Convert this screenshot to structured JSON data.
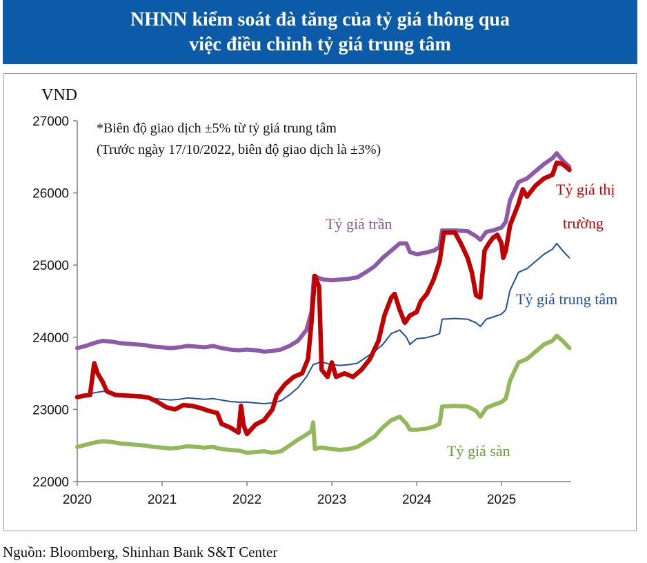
{
  "title": {
    "line1": "NHNN kiểm soát đà tăng của tỷ giá thông qua",
    "line2": "việc điều chỉnh tỷ giá trung tâm"
  },
  "source": "Nguồn: Bloomberg, Shinhan Bank S&T Center",
  "colors": {
    "banner": "#0b5ba9",
    "ceiling": "#8c5aa8",
    "market": "#c00000",
    "central": "#1f4e9c",
    "floor": "#93b85c"
  },
  "chart_data": {
    "type": "line",
    "ylabel": "VND",
    "ylim": [
      22000,
      27000
    ],
    "yticks": [
      22000,
      23000,
      24000,
      25000,
      26000,
      27000
    ],
    "xlim": [
      2020,
      2025.82
    ],
    "xticks": [
      2020,
      2021,
      2022,
      2023,
      2024,
      2025
    ],
    "grid": false,
    "notes": [
      "*Biên độ giao dịch ±5% từ tỷ giá trung tâm",
      "(Trước ngày 17/10/2022, biên độ giao dịch là ±3%)"
    ],
    "series_labels": {
      "ceiling": "Tỷ giá trần",
      "market_line1": "Tỷ giá thị",
      "market_line2": "trường",
      "central": "Tỷ giá trung tâm",
      "floor": "Tỷ giá sàn"
    },
    "series": [
      {
        "key": "ceiling",
        "name": "Tỷ giá trần",
        "color": "#8c5aa8",
        "points": [
          [
            2020.0,
            23850
          ],
          [
            2020.1,
            23880
          ],
          [
            2020.2,
            23920
          ],
          [
            2020.3,
            23950
          ],
          [
            2020.4,
            23940
          ],
          [
            2020.5,
            23920
          ],
          [
            2020.6,
            23910
          ],
          [
            2020.7,
            23900
          ],
          [
            2020.8,
            23890
          ],
          [
            2020.9,
            23870
          ],
          [
            2021.0,
            23860
          ],
          [
            2021.1,
            23850
          ],
          [
            2021.2,
            23860
          ],
          [
            2021.3,
            23880
          ],
          [
            2021.4,
            23870
          ],
          [
            2021.5,
            23860
          ],
          [
            2021.6,
            23880
          ],
          [
            2021.7,
            23850
          ],
          [
            2021.8,
            23830
          ],
          [
            2021.9,
            23820
          ],
          [
            2022.0,
            23830
          ],
          [
            2022.1,
            23820
          ],
          [
            2022.2,
            23800
          ],
          [
            2022.3,
            23810
          ],
          [
            2022.4,
            23830
          ],
          [
            2022.5,
            23880
          ],
          [
            2022.6,
            23950
          ],
          [
            2022.7,
            24100
          ],
          [
            2022.76,
            24350
          ],
          [
            2022.79,
            24850
          ],
          [
            2022.85,
            24820
          ],
          [
            2022.9,
            24800
          ],
          [
            2023.0,
            24790
          ],
          [
            2023.1,
            24800
          ],
          [
            2023.2,
            24810
          ],
          [
            2023.3,
            24830
          ],
          [
            2023.4,
            24900
          ],
          [
            2023.5,
            24980
          ],
          [
            2023.6,
            25100
          ],
          [
            2023.7,
            25200
          ],
          [
            2023.8,
            25300
          ],
          [
            2023.88,
            25300
          ],
          [
            2023.92,
            25180
          ],
          [
            2024.0,
            25150
          ],
          [
            2024.1,
            25170
          ],
          [
            2024.2,
            25200
          ],
          [
            2024.27,
            25250
          ],
          [
            2024.3,
            25480
          ],
          [
            2024.45,
            25480
          ],
          [
            2024.6,
            25470
          ],
          [
            2024.7,
            25400
          ],
          [
            2024.75,
            25350
          ],
          [
            2024.82,
            25460
          ],
          [
            2024.9,
            25480
          ],
          [
            2025.0,
            25520
          ],
          [
            2025.05,
            25600
          ],
          [
            2025.1,
            25900
          ],
          [
            2025.2,
            26150
          ],
          [
            2025.3,
            26200
          ],
          [
            2025.4,
            26300
          ],
          [
            2025.5,
            26400
          ],
          [
            2025.6,
            26480
          ],
          [
            2025.65,
            26550
          ],
          [
            2025.72,
            26450
          ],
          [
            2025.8,
            26360
          ]
        ]
      },
      {
        "key": "market",
        "name": "Tỷ giá thị trường",
        "color": "#c00000",
        "points": [
          [
            2020.0,
            23170
          ],
          [
            2020.08,
            23190
          ],
          [
            2020.15,
            23200
          ],
          [
            2020.2,
            23640
          ],
          [
            2020.24,
            23500
          ],
          [
            2020.3,
            23380
          ],
          [
            2020.35,
            23250
          ],
          [
            2020.45,
            23200
          ],
          [
            2020.6,
            23190
          ],
          [
            2020.75,
            23180
          ],
          [
            2020.85,
            23160
          ],
          [
            2020.95,
            23100
          ],
          [
            2021.05,
            23030
          ],
          [
            2021.15,
            23000
          ],
          [
            2021.25,
            23060
          ],
          [
            2021.35,
            23050
          ],
          [
            2021.45,
            23020
          ],
          [
            2021.55,
            22980
          ],
          [
            2021.65,
            22950
          ],
          [
            2021.7,
            22800
          ],
          [
            2021.8,
            22750
          ],
          [
            2021.9,
            22680
          ],
          [
            2021.93,
            23050
          ],
          [
            2021.96,
            22780
          ],
          [
            2022.0,
            22660
          ],
          [
            2022.1,
            22790
          ],
          [
            2022.2,
            22850
          ],
          [
            2022.3,
            23000
          ],
          [
            2022.35,
            23200
          ],
          [
            2022.45,
            23350
          ],
          [
            2022.55,
            23450
          ],
          [
            2022.65,
            23500
          ],
          [
            2022.72,
            23700
          ],
          [
            2022.76,
            24200
          ],
          [
            2022.8,
            24850
          ],
          [
            2022.85,
            24700
          ],
          [
            2022.88,
            23550
          ],
          [
            2022.95,
            23450
          ],
          [
            2023.0,
            23650
          ],
          [
            2023.05,
            23450
          ],
          [
            2023.15,
            23500
          ],
          [
            2023.25,
            23450
          ],
          [
            2023.35,
            23550
          ],
          [
            2023.45,
            23700
          ],
          [
            2023.55,
            23950
          ],
          [
            2023.62,
            24300
          ],
          [
            2023.7,
            24550
          ],
          [
            2023.74,
            24600
          ],
          [
            2023.8,
            24380
          ],
          [
            2023.86,
            24200
          ],
          [
            2023.92,
            24300
          ],
          [
            2024.0,
            24350
          ],
          [
            2024.05,
            24500
          ],
          [
            2024.12,
            24600
          ],
          [
            2024.2,
            24800
          ],
          [
            2024.27,
            25050
          ],
          [
            2024.32,
            25450
          ],
          [
            2024.45,
            25450
          ],
          [
            2024.52,
            25300
          ],
          [
            2024.6,
            25100
          ],
          [
            2024.65,
            24900
          ],
          [
            2024.7,
            24580
          ],
          [
            2024.75,
            24550
          ],
          [
            2024.8,
            25200
          ],
          [
            2024.85,
            25300
          ],
          [
            2024.9,
            25380
          ],
          [
            2024.95,
            25420
          ],
          [
            2025.0,
            25300
          ],
          [
            2025.02,
            25100
          ],
          [
            2025.05,
            25200
          ],
          [
            2025.1,
            25550
          ],
          [
            2025.2,
            25850
          ],
          [
            2025.25,
            26050
          ],
          [
            2025.3,
            25950
          ],
          [
            2025.4,
            26100
          ],
          [
            2025.5,
            26200
          ],
          [
            2025.6,
            26250
          ],
          [
            2025.65,
            26420
          ],
          [
            2025.72,
            26400
          ],
          [
            2025.8,
            26320
          ]
        ]
      },
      {
        "key": "central",
        "name": "Tỷ giá trung tâm",
        "color": "#1f4e9c",
        "points": [
          [
            2020.0,
            23170
          ],
          [
            2020.1,
            23200
          ],
          [
            2020.2,
            23230
          ],
          [
            2020.3,
            23250
          ],
          [
            2020.4,
            23240
          ],
          [
            2020.5,
            23210
          ],
          [
            2020.6,
            23200
          ],
          [
            2020.7,
            23190
          ],
          [
            2020.8,
            23180
          ],
          [
            2020.9,
            23150
          ],
          [
            2021.0,
            23140
          ],
          [
            2021.1,
            23130
          ],
          [
            2021.2,
            23140
          ],
          [
            2021.3,
            23160
          ],
          [
            2021.4,
            23150
          ],
          [
            2021.5,
            23140
          ],
          [
            2021.6,
            23150
          ],
          [
            2021.7,
            23130
          ],
          [
            2021.8,
            23110
          ],
          [
            2021.9,
            23100
          ],
          [
            2022.0,
            23100
          ],
          [
            2022.1,
            23090
          ],
          [
            2022.2,
            23080
          ],
          [
            2022.3,
            23090
          ],
          [
            2022.4,
            23120
          ],
          [
            2022.5,
            23200
          ],
          [
            2022.6,
            23300
          ],
          [
            2022.7,
            23450
          ],
          [
            2022.78,
            23620
          ],
          [
            2022.85,
            23650
          ],
          [
            2022.9,
            23650
          ],
          [
            2023.0,
            23620
          ],
          [
            2023.1,
            23610
          ],
          [
            2023.2,
            23620
          ],
          [
            2023.3,
            23640
          ],
          [
            2023.4,
            23720
          ],
          [
            2023.5,
            23800
          ],
          [
            2023.6,
            23900
          ],
          [
            2023.7,
            24050
          ],
          [
            2023.8,
            24100
          ],
          [
            2023.88,
            24000
          ],
          [
            2023.92,
            23900
          ],
          [
            2024.0,
            23980
          ],
          [
            2024.1,
            23990
          ],
          [
            2024.2,
            24020
          ],
          [
            2024.27,
            24050
          ],
          [
            2024.3,
            24250
          ],
          [
            2024.45,
            24260
          ],
          [
            2024.6,
            24250
          ],
          [
            2024.7,
            24200
          ],
          [
            2024.75,
            24150
          ],
          [
            2024.82,
            24250
          ],
          [
            2024.9,
            24280
          ],
          [
            2025.0,
            24320
          ],
          [
            2025.05,
            24380
          ],
          [
            2025.1,
            24650
          ],
          [
            2025.2,
            24900
          ],
          [
            2025.3,
            24950
          ],
          [
            2025.4,
            25050
          ],
          [
            2025.5,
            25150
          ],
          [
            2025.6,
            25220
          ],
          [
            2025.65,
            25300
          ],
          [
            2025.72,
            25200
          ],
          [
            2025.8,
            25100
          ]
        ]
      },
      {
        "key": "floor",
        "name": "Tỷ giá sàn",
        "color": "#93b85c",
        "points": [
          [
            2020.0,
            22480
          ],
          [
            2020.1,
            22510
          ],
          [
            2020.2,
            22540
          ],
          [
            2020.3,
            22560
          ],
          [
            2020.4,
            22550
          ],
          [
            2020.5,
            22530
          ],
          [
            2020.6,
            22520
          ],
          [
            2020.7,
            22510
          ],
          [
            2020.8,
            22500
          ],
          [
            2020.9,
            22480
          ],
          [
            2021.0,
            22470
          ],
          [
            2021.1,
            22460
          ],
          [
            2021.2,
            22470
          ],
          [
            2021.3,
            22490
          ],
          [
            2021.4,
            22480
          ],
          [
            2021.5,
            22470
          ],
          [
            2021.6,
            22480
          ],
          [
            2021.7,
            22450
          ],
          [
            2021.8,
            22440
          ],
          [
            2021.9,
            22430
          ],
          [
            2022.0,
            22400
          ],
          [
            2022.1,
            22410
          ],
          [
            2022.2,
            22420
          ],
          [
            2022.3,
            22400
          ],
          [
            2022.4,
            22420
          ],
          [
            2022.5,
            22500
          ],
          [
            2022.6,
            22580
          ],
          [
            2022.7,
            22650
          ],
          [
            2022.76,
            22700
          ],
          [
            2022.78,
            22820
          ],
          [
            2022.8,
            22450
          ],
          [
            2022.85,
            22470
          ],
          [
            2022.9,
            22470
          ],
          [
            2023.0,
            22450
          ],
          [
            2023.1,
            22440
          ],
          [
            2023.2,
            22450
          ],
          [
            2023.3,
            22480
          ],
          [
            2023.4,
            22550
          ],
          [
            2023.5,
            22620
          ],
          [
            2023.6,
            22750
          ],
          [
            2023.7,
            22850
          ],
          [
            2023.8,
            22900
          ],
          [
            2023.88,
            22800
          ],
          [
            2023.92,
            22720
          ],
          [
            2024.0,
            22720
          ],
          [
            2024.1,
            22730
          ],
          [
            2024.2,
            22760
          ],
          [
            2024.27,
            22800
          ],
          [
            2024.3,
            23040
          ],
          [
            2024.45,
            23050
          ],
          [
            2024.6,
            23040
          ],
          [
            2024.7,
            22980
          ],
          [
            2024.75,
            22900
          ],
          [
            2024.82,
            23020
          ],
          [
            2024.9,
            23060
          ],
          [
            2025.0,
            23100
          ],
          [
            2025.05,
            23150
          ],
          [
            2025.1,
            23400
          ],
          [
            2025.2,
            23650
          ],
          [
            2025.3,
            23700
          ],
          [
            2025.4,
            23800
          ],
          [
            2025.5,
            23900
          ],
          [
            2025.6,
            23950
          ],
          [
            2025.65,
            24020
          ],
          [
            2025.72,
            23950
          ],
          [
            2025.8,
            23850
          ]
        ]
      }
    ]
  }
}
